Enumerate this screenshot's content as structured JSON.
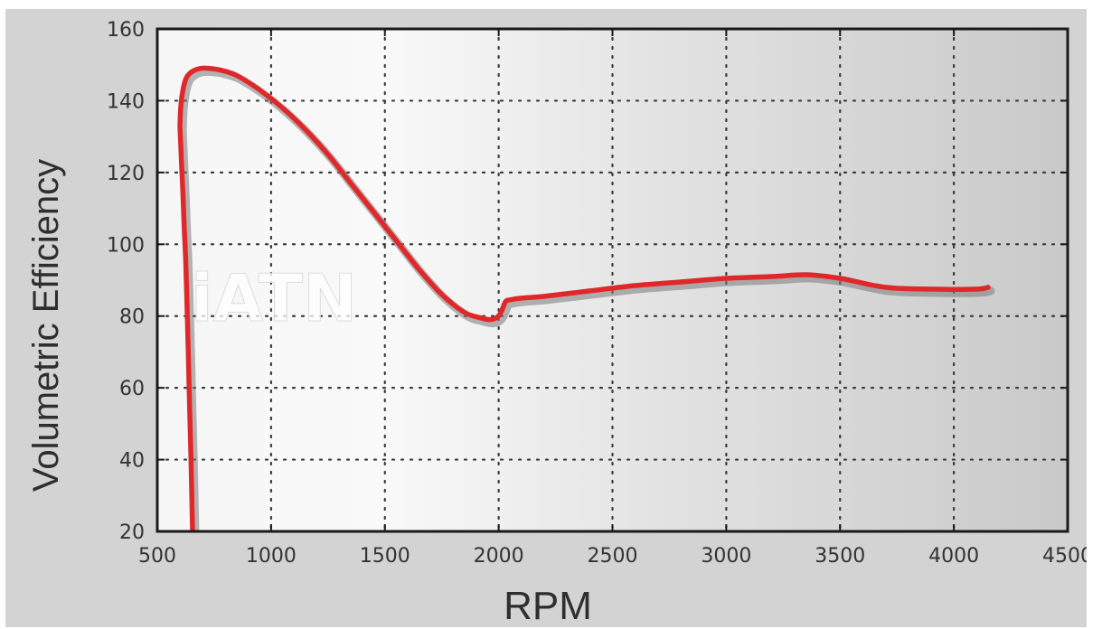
{
  "chart_data": {
    "type": "line",
    "title": "",
    "xlabel": "RPM",
    "ylabel": "Volumetric Efficiency",
    "xlim": [
      500,
      4500
    ],
    "ylim": [
      20,
      160
    ],
    "xticks": [
      500,
      1000,
      1500,
      2000,
      2500,
      3000,
      3500,
      4000,
      4500
    ],
    "yticks": [
      20,
      40,
      60,
      80,
      100,
      120,
      140,
      160
    ],
    "x_tick_labels": [
      "500",
      "1000",
      "1500",
      "2000",
      "2500",
      "3000",
      "3500",
      "4000",
      "4500"
    ],
    "y_tick_labels": [
      "20",
      "40",
      "60",
      "80",
      "100",
      "120",
      "140",
      "160"
    ],
    "grid": true,
    "legend": "none",
    "watermark": "iATN",
    "series": [
      {
        "color": "#e0282a",
        "x": [
          655,
          648,
          640,
          632,
          625,
          618,
          612,
          607,
          603,
          600,
          600,
          603,
          610,
          625,
          650,
          690,
          730,
          780,
          850,
          950,
          1050,
          1150,
          1250,
          1350,
          1450,
          1550,
          1650,
          1750,
          1850,
          1920,
          1960,
          1990,
          2010,
          2030,
          2050,
          2100,
          2200,
          2400,
          2600,
          2800,
          3000,
          3200,
          3350,
          3500,
          3700,
          3900,
          4100,
          4150
        ],
        "y": [
          20,
          40,
          60,
          80,
          95,
          105,
          115,
          122,
          128,
          132,
          134,
          138,
          142,
          146,
          148,
          149,
          149,
          148.5,
          147,
          143,
          138,
          132,
          125,
          117,
          109,
          101,
          93,
          86,
          81,
          79.5,
          79,
          79.5,
          81,
          84,
          84.5,
          85,
          85.5,
          87,
          88.5,
          89.5,
          90.5,
          91,
          91.5,
          90.5,
          88,
          87.5,
          87.5,
          88
        ]
      }
    ]
  }
}
